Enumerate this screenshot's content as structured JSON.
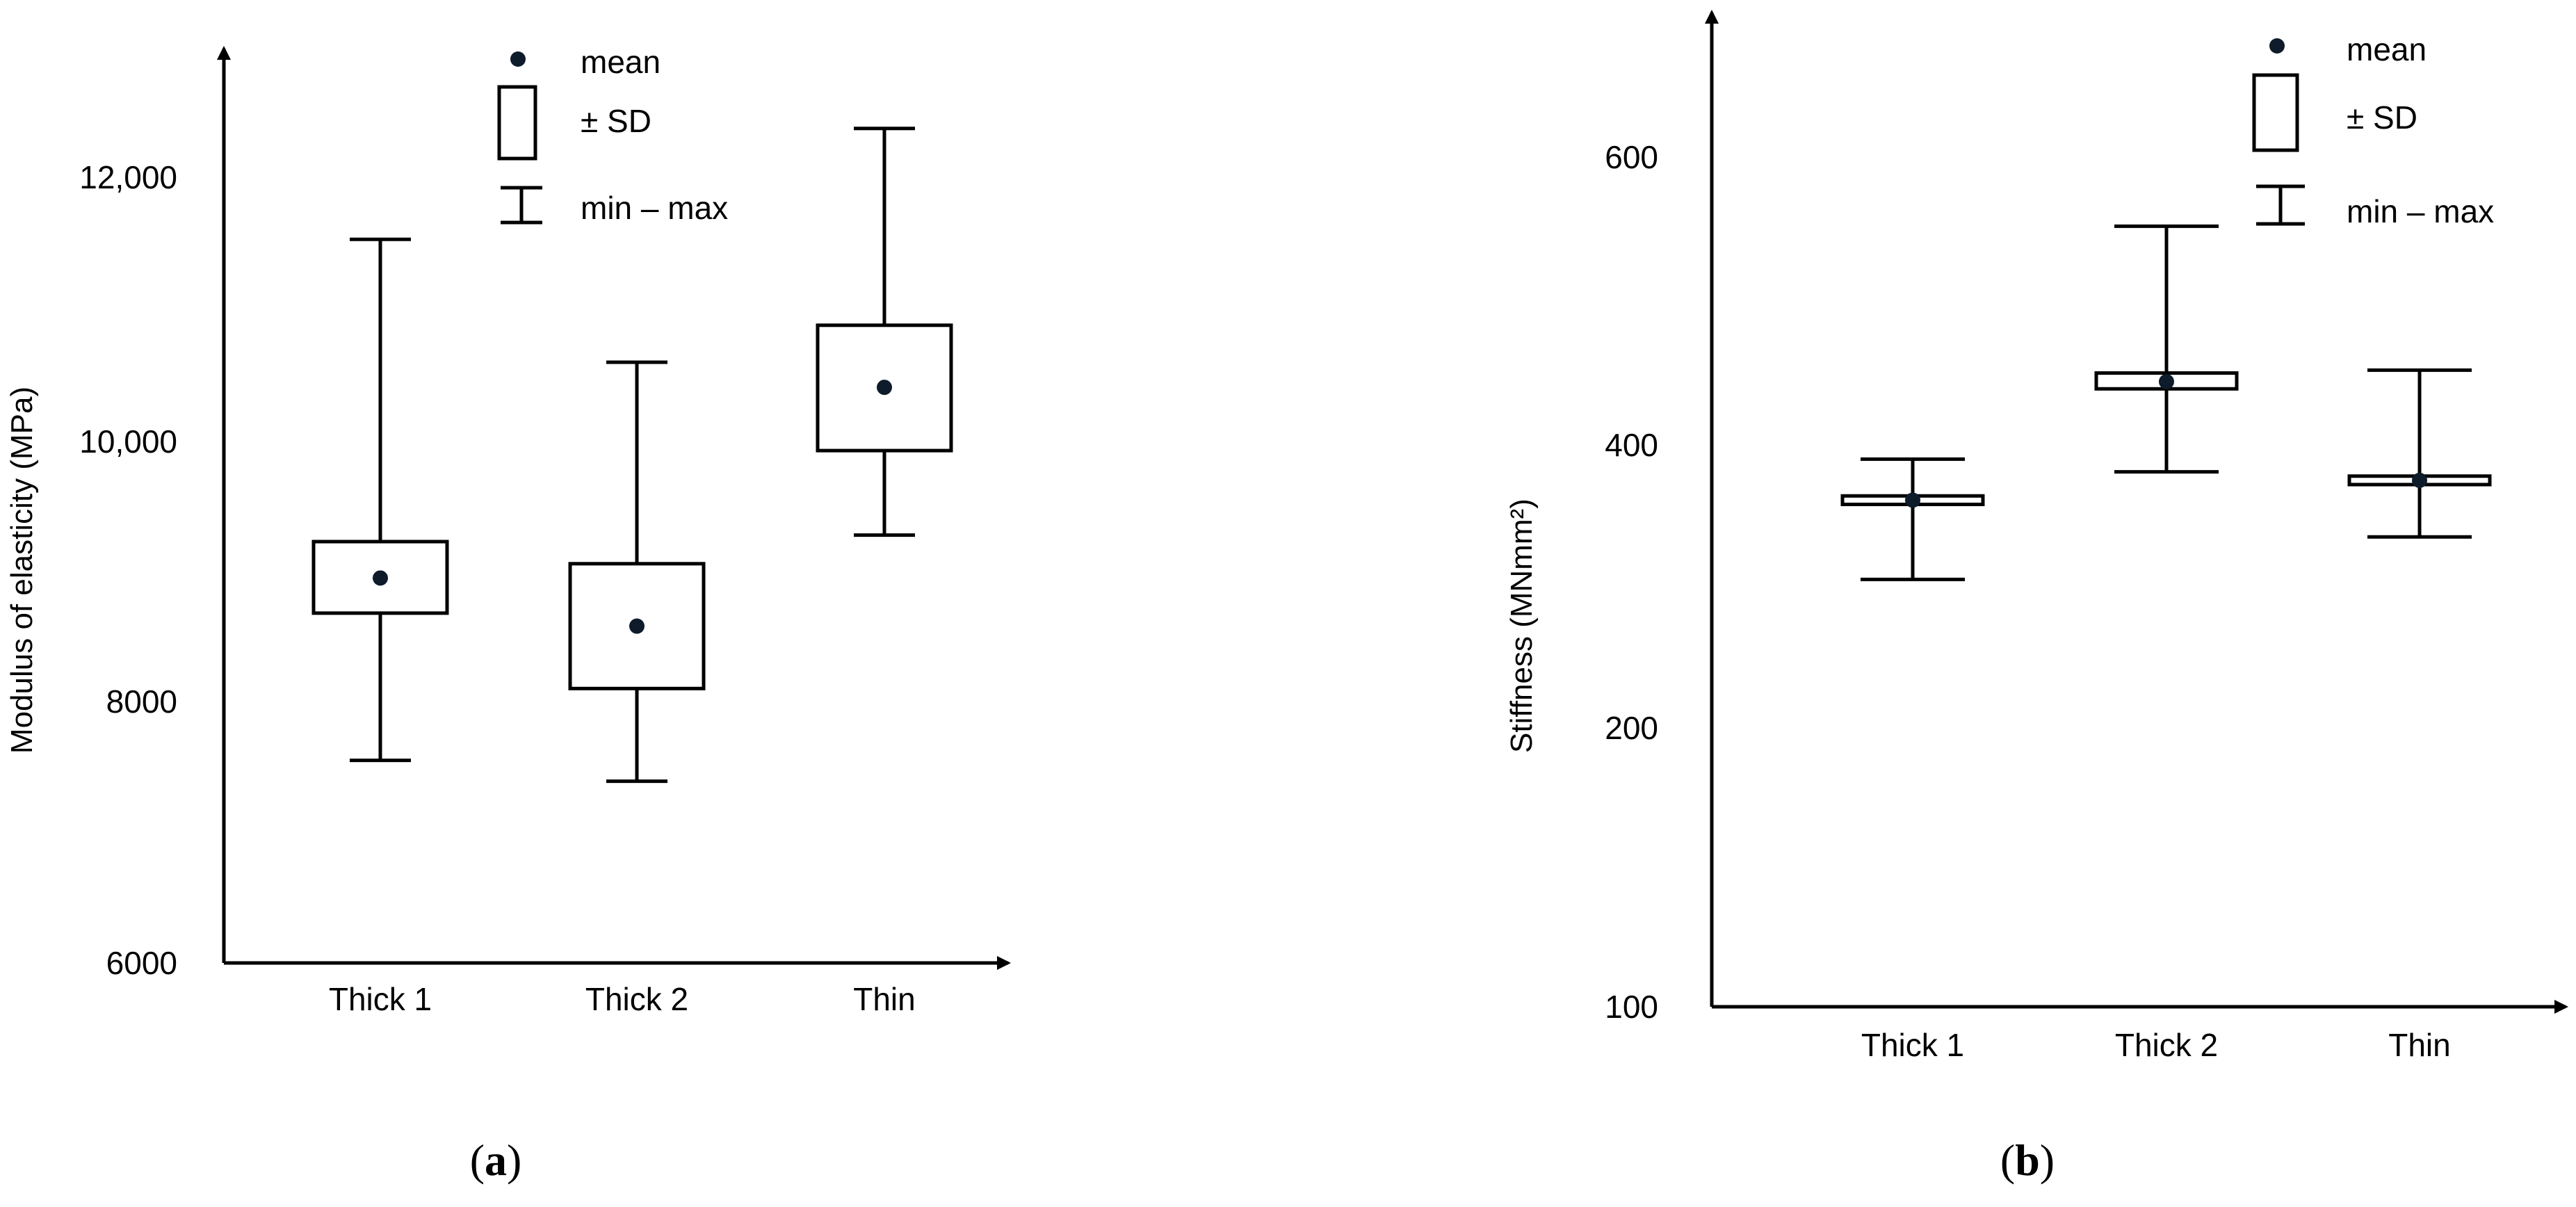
{
  "panels": [
    {
      "id": "a",
      "label": "a",
      "legend": {
        "mean": "mean",
        "sd": "± SD",
        "range": "min – max"
      }
    },
    {
      "id": "b",
      "label": "b",
      "legend": {
        "mean": "mean",
        "sd": "± SD",
        "range": "min – max"
      }
    }
  ],
  "chart_data": [
    {
      "type": "boxplot",
      "title": "",
      "xlabel": "",
      "ylabel": "Modulus of elasticity (MPa)",
      "categories": [
        "Thick 1",
        "Thick 2",
        "Thin"
      ],
      "ylim": [
        6000,
        13500
      ],
      "yticks": [
        6000,
        8000,
        10000,
        12000
      ],
      "ytick_labels": [
        "6000",
        "8000",
        "10,000",
        "12,000"
      ],
      "legend_position": "top-center",
      "series": [
        {
          "category": "Thick 1",
          "min": 7550,
          "sd_low": 8680,
          "mean": 8950,
          "sd_high": 9230,
          "max": 11530
        },
        {
          "category": "Thick 2",
          "min": 7390,
          "sd_low": 8100,
          "mean": 8580,
          "sd_high": 9060,
          "max": 10600
        },
        {
          "category": "Thin",
          "min": 9280,
          "sd_low": 9930,
          "mean": 10410,
          "sd_high": 10880,
          "max": 12370
        }
      ],
      "grid": false
    },
    {
      "type": "boxplot",
      "title": "",
      "xlabel": "",
      "ylabel": "Stiffness (MNmm²)",
      "categories": [
        "Thick 1",
        "Thick 2",
        "Thin"
      ],
      "ylim": [
        100,
        680
      ],
      "yticks": [
        100,
        200,
        400,
        600
      ],
      "ytick_labels": [
        "100",
        "200",
        "400",
        "600"
      ],
      "legend_position": "top-right",
      "series": [
        {
          "category": "Thick 1",
          "min": 305,
          "sd_low": 358,
          "mean": 361,
          "sd_high": 364,
          "max": 390
        },
        {
          "category": "Thick 2",
          "min": 381,
          "sd_low": 439,
          "mean": 444,
          "sd_high": 450,
          "max": 552
        },
        {
          "category": "Thin",
          "min": 335,
          "sd_low": 372,
          "mean": 375,
          "sd_high": 378,
          "max": 452
        }
      ],
      "grid": false
    }
  ]
}
